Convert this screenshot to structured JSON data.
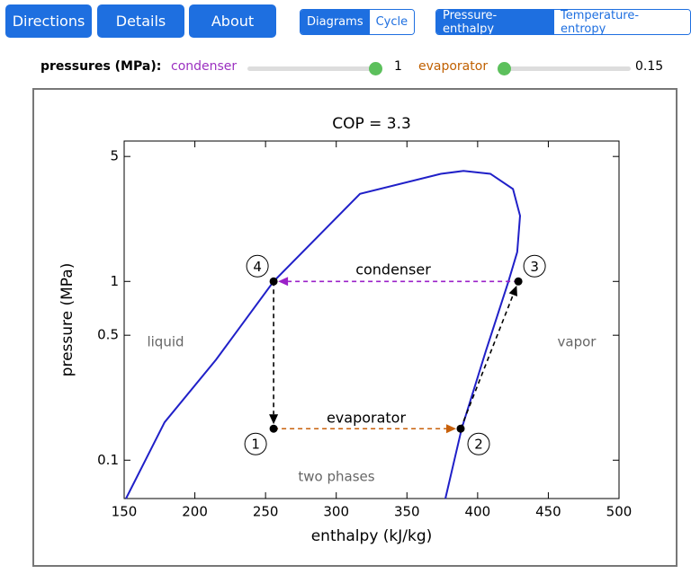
{
  "buttons": [
    "Directions",
    "Details",
    "About"
  ],
  "view_toggle": {
    "options": [
      "Diagrams",
      "Cycle"
    ],
    "selected": 0
  },
  "plot_toggle": {
    "options": [
      "Pressure-enthalpy",
      "Temperature-entropy"
    ],
    "selected": 0
  },
  "sliders_label": "pressures (MPa):",
  "sliders": [
    {
      "label": "condenser",
      "value": 1,
      "color": "#9b30c0"
    },
    {
      "label": "evaporator",
      "value": 0.15,
      "color": "#c06000"
    }
  ],
  "chart_data": {
    "type": "line",
    "title": "COP = 3.3",
    "x_label": "enthalpy (kJ/kg)",
    "y_label": "pressure (MPa)",
    "xlim": [
      150,
      500
    ],
    "ylim": [
      0.061,
      6.1
    ],
    "log_y": true,
    "xticks": [
      150,
      200,
      250,
      300,
      350,
      400,
      450,
      500
    ],
    "yticks": [
      0.1,
      0.5,
      1,
      5
    ],
    "series": [
      {
        "color": "#2020c8",
        "x": [
          151.3,
          178.6,
          215,
          255.7,
          316.8,
          374,
          390,
          409,
          425,
          430,
          428,
          421.8,
          405.9,
          388.7,
          377.2
        ],
        "values": [
          0.061,
          0.163,
          0.365,
          1,
          3.09,
          4.0,
          4.15,
          4.0,
          3.29,
          2.33,
          1.46,
          1,
          0.41,
          0.15,
          0.061
        ]
      }
    ],
    "points": {
      "labels": [
        "1",
        "2",
        "3",
        "4"
      ],
      "x": [
        255.7,
        388,
        428.8,
        255.7
      ],
      "values": [
        0.15,
        0.15,
        1,
        1
      ]
    },
    "arrow_colors": [
      "#c8600a",
      "#000000",
      "#9b20c8",
      "#000000"
    ],
    "annotations": [
      "condenser",
      "evaporator",
      "liquid",
      "vapor",
      "two phases"
    ]
  }
}
